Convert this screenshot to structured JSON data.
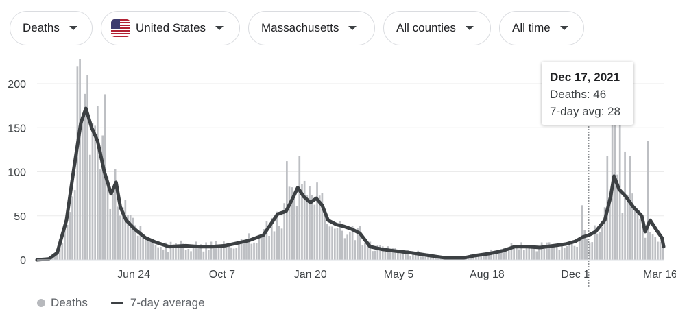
{
  "filters": {
    "metric": "Deaths",
    "country": "United States",
    "state": "Massachusetts",
    "county": "All counties",
    "range": "All time"
  },
  "tooltip": {
    "date": "Dec 17, 2021",
    "deaths": "Deaths: 46",
    "avg": "7-day avg: 28"
  },
  "legend": {
    "bars": "Deaths",
    "line": "7-day average"
  },
  "colors": {
    "bars": "#bdbfc3",
    "line": "#3c4043",
    "grid": "#ebebeb",
    "flag_red": "#b22234",
    "flag_blue": "#3c3b6e"
  },
  "chart_data": {
    "type": "bar",
    "ylim": [
      0,
      200
    ],
    "yticks": [
      0,
      50,
      100,
      150,
      200
    ],
    "x_tick_labels": [
      "Jun 24",
      "Oct 7",
      "Jan 20",
      "May 5",
      "Aug 18",
      "Dec 1",
      "Mar 16"
    ],
    "x_range": [
      "2020-03-01",
      "2022-03-16"
    ],
    "x_ticks": [
      "2020-06-24",
      "2020-10-07",
      "2021-01-20",
      "2021-05-05",
      "2021-08-18",
      "2021-12-01",
      "2022-03-16"
    ],
    "highlight_date": "2021-12-17",
    "series": [
      {
        "name": "7-day average",
        "kind": "line",
        "points": [
          [
            "2020-03-01",
            0
          ],
          [
            "2020-03-15",
            1
          ],
          [
            "2020-03-25",
            8
          ],
          [
            "2020-04-05",
            45
          ],
          [
            "2020-04-14",
            105
          ],
          [
            "2020-04-22",
            155
          ],
          [
            "2020-04-28",
            172
          ],
          [
            "2020-05-05",
            150
          ],
          [
            "2020-05-12",
            135
          ],
          [
            "2020-05-20",
            100
          ],
          [
            "2020-05-28",
            75
          ],
          [
            "2020-06-03",
            88
          ],
          [
            "2020-06-08",
            60
          ],
          [
            "2020-06-15",
            45
          ],
          [
            "2020-06-25",
            35
          ],
          [
            "2020-07-08",
            25
          ],
          [
            "2020-07-20",
            20
          ],
          [
            "2020-08-05",
            15
          ],
          [
            "2020-08-25",
            16
          ],
          [
            "2020-09-10",
            15
          ],
          [
            "2020-09-25",
            15
          ],
          [
            "2020-10-10",
            16
          ],
          [
            "2020-10-25",
            19
          ],
          [
            "2020-11-08",
            22
          ],
          [
            "2020-11-25",
            28
          ],
          [
            "2020-12-05",
            42
          ],
          [
            "2020-12-12",
            52
          ],
          [
            "2020-12-22",
            55
          ],
          [
            "2020-12-30",
            70
          ],
          [
            "2021-01-05",
            82
          ],
          [
            "2021-01-12",
            72
          ],
          [
            "2021-01-20",
            65
          ],
          [
            "2021-01-27",
            70
          ],
          [
            "2021-02-03",
            62
          ],
          [
            "2021-02-10",
            45
          ],
          [
            "2021-02-20",
            40
          ],
          [
            "2021-03-01",
            38
          ],
          [
            "2021-03-10",
            35
          ],
          [
            "2021-03-20",
            30
          ],
          [
            "2021-04-01",
            15
          ],
          [
            "2021-04-15",
            12
          ],
          [
            "2021-05-01",
            10
          ],
          [
            "2021-05-20",
            8
          ],
          [
            "2021-06-10",
            5
          ],
          [
            "2021-07-01",
            2
          ],
          [
            "2021-07-20",
            2
          ],
          [
            "2021-08-05",
            5
          ],
          [
            "2021-08-20",
            7
          ],
          [
            "2021-09-05",
            10
          ],
          [
            "2021-09-20",
            15
          ],
          [
            "2021-10-05",
            15
          ],
          [
            "2021-10-20",
            14
          ],
          [
            "2021-11-05",
            16
          ],
          [
            "2021-11-20",
            18
          ],
          [
            "2021-12-01",
            21
          ],
          [
            "2021-12-10",
            26
          ],
          [
            "2021-12-17",
            28
          ],
          [
            "2021-12-25",
            32
          ],
          [
            "2022-01-05",
            45
          ],
          [
            "2022-01-12",
            72
          ],
          [
            "2022-01-16",
            95
          ],
          [
            "2022-01-22",
            80
          ],
          [
            "2022-01-30",
            72
          ],
          [
            "2022-02-08",
            60
          ],
          [
            "2022-02-18",
            50
          ],
          [
            "2022-02-22",
            32
          ],
          [
            "2022-02-28",
            45
          ],
          [
            "2022-03-08",
            33
          ],
          [
            "2022-03-14",
            25
          ],
          [
            "2022-03-16",
            15
          ]
        ]
      },
      {
        "name": "Deaths",
        "kind": "bars",
        "spikes": [
          [
            "2020-04-19",
            220
          ],
          [
            "2020-04-22",
            228
          ],
          [
            "2020-05-01",
            210
          ],
          [
            "2020-05-06",
            155
          ],
          [
            "2020-05-20",
            188
          ],
          [
            "2020-06-15",
            68
          ],
          [
            "2020-12-23",
            112
          ],
          [
            "2021-01-08",
            118
          ],
          [
            "2021-12-08",
            62
          ],
          [
            "2022-01-08",
            118
          ],
          [
            "2022-01-14",
            168
          ],
          [
            "2022-01-16",
            175
          ],
          [
            "2022-01-22",
            170
          ],
          [
            "2022-01-28",
            123
          ],
          [
            "2022-02-03",
            118
          ],
          [
            "2022-02-25",
            135
          ]
        ]
      }
    ]
  }
}
